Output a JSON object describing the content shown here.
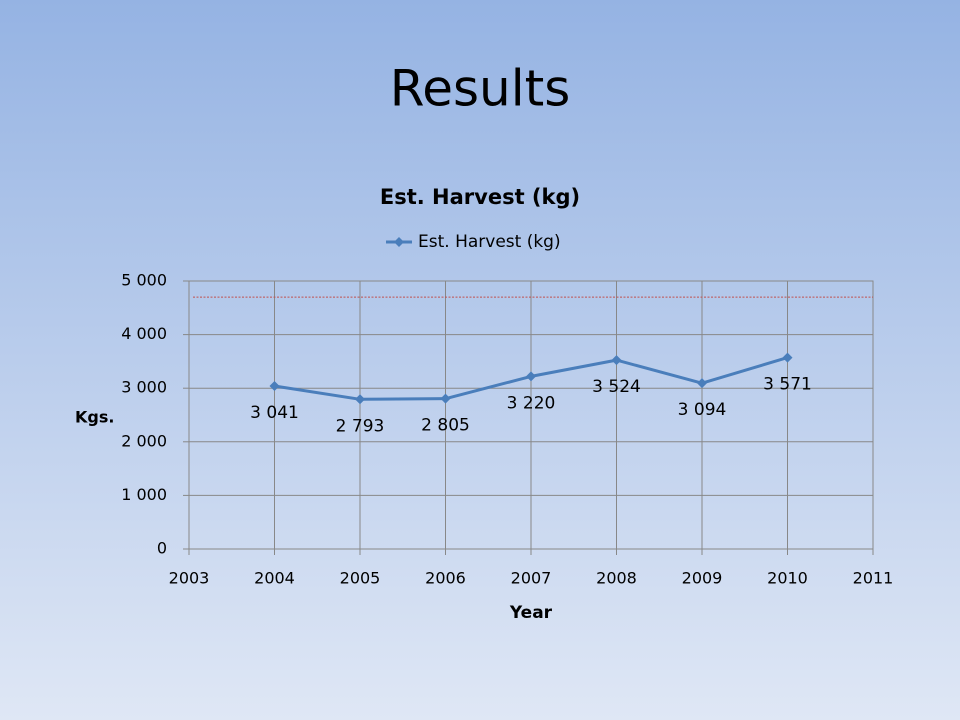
{
  "slide_title": "Results",
  "chart_data": {
    "type": "line",
    "title": "Est. Harvest (kg)",
    "x": [
      2004,
      2005,
      2006,
      2007,
      2008,
      2009,
      2010
    ],
    "series": [
      {
        "name": "Est. Harvest (kg)",
        "color": "#4a7ebb",
        "values": [
          3041,
          2793,
          2805,
          3220,
          3524,
          3094,
          3571
        ],
        "value_labels": [
          "3 041",
          "2 793",
          "2 805",
          "3 220",
          "3 524",
          "3 094",
          "3 571"
        ]
      }
    ],
    "xlim": [
      2003,
      2011
    ],
    "xticks": [
      2003,
      2004,
      2005,
      2006,
      2007,
      2008,
      2009,
      2010,
      2011
    ],
    "ylim": [
      0,
      5000
    ],
    "yticks": [
      0,
      {
        "value": 1000,
        "label": "1 000"
      },
      {
        "value": 2000,
        "label": "2 000"
      },
      {
        "value": 3000,
        "label": "3 000"
      },
      {
        "value": 4000,
        "label": "4 000"
      },
      {
        "value": 5000,
        "label": "5 000"
      }
    ],
    "xlabel": "Year",
    "ylabel": "Kgs.",
    "grid": true,
    "legend": "top",
    "reference_line": {
      "value": 4700,
      "color": "#c0504d"
    }
  }
}
